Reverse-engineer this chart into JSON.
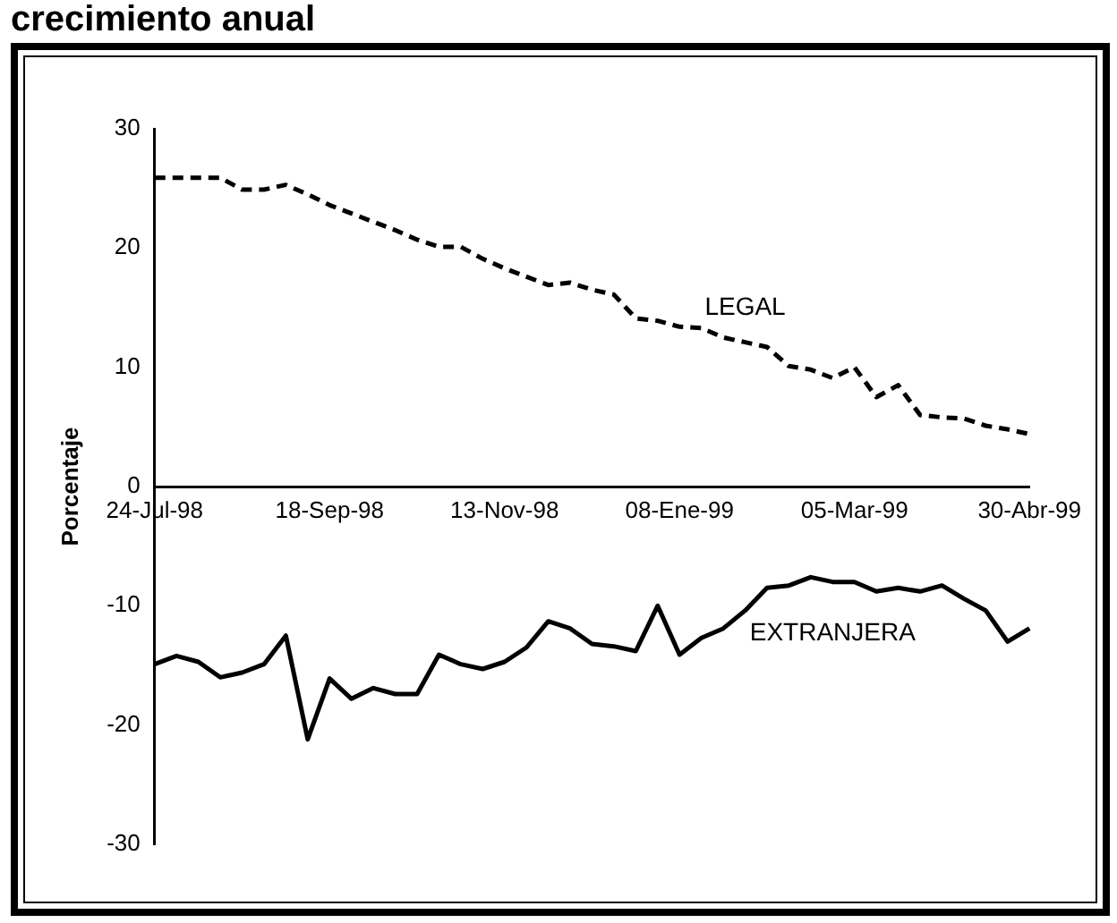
{
  "chart_data": {
    "type": "line",
    "title": "crecimiento anual",
    "ylabel": "Porcentaje",
    "categories": [
      "24-Jul-98",
      null,
      null,
      null,
      null,
      null,
      null,
      null,
      "18-Sep-98",
      null,
      null,
      null,
      null,
      null,
      null,
      null,
      "13-Nov-98",
      null,
      null,
      null,
      null,
      null,
      null,
      null,
      "08-Ene-99",
      null,
      null,
      null,
      null,
      null,
      null,
      null,
      "05-Mar-99",
      null,
      null,
      null,
      null,
      null,
      null,
      null,
      "30-Abr-99"
    ],
    "series": [
      {
        "name": "LEGAL",
        "color": "#000000",
        "line_style": "dashed",
        "values": [
          25.9,
          25.9,
          25.9,
          25.9,
          24.9,
          24.9,
          25.3,
          24.5,
          23.6,
          22.9,
          22.2,
          21.5,
          20.7,
          20.1,
          20.1,
          19.1,
          18.3,
          17.6,
          16.9,
          17.1,
          16.5,
          16.1,
          14.1,
          13.9,
          13.4,
          13.3,
          12.5,
          12.1,
          11.7,
          10.1,
          9.8,
          9.1,
          10.0,
          7.5,
          8.5,
          6.0,
          5.8,
          5.7,
          5.1,
          4.8,
          4.4
        ]
      },
      {
        "name": "EXTRANJERA",
        "color": "#000000",
        "line_style": "solid",
        "values": [
          -14.9,
          -14.2,
          -14.7,
          -16.0,
          -15.6,
          -14.9,
          -12.5,
          -21.2,
          -16.1,
          -17.8,
          -16.9,
          -17.4,
          -17.4,
          -14.1,
          -14.9,
          -15.3,
          -14.7,
          -13.5,
          -11.3,
          -11.9,
          -13.2,
          -13.4,
          -13.8,
          -10.0,
          -14.1,
          -12.7,
          -11.9,
          -10.4,
          -8.5,
          -8.3,
          -7.6,
          -8.0,
          -8.0,
          -8.8,
          -8.5,
          -8.8,
          -8.3,
          -9.4,
          -10.4,
          -13.0,
          -11.9
        ]
      }
    ],
    "ylim": [
      -30,
      30
    ],
    "yticks": [
      -30,
      -20,
      -10,
      0,
      10,
      20,
      30
    ],
    "grid": false,
    "legend": false,
    "marker": "none"
  }
}
